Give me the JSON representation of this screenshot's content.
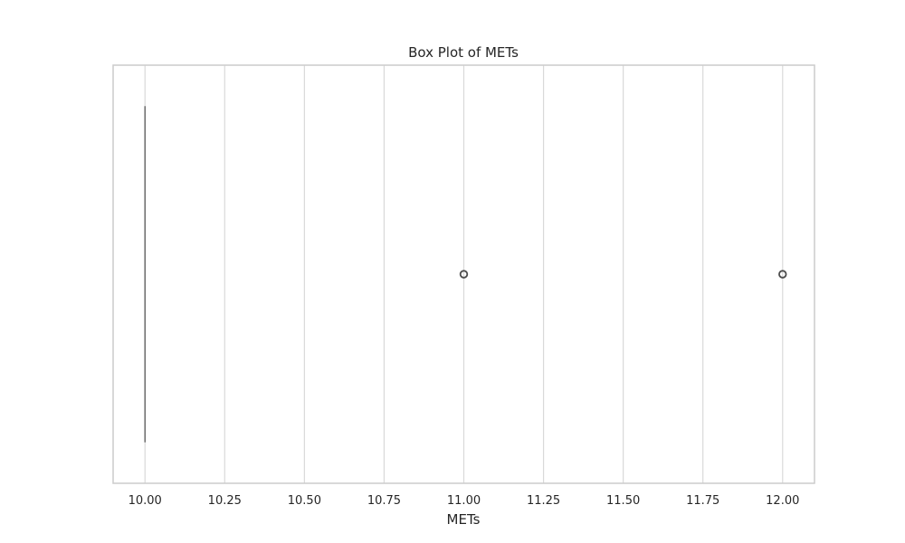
{
  "chart_data": {
    "type": "box",
    "title": "Box Plot of METs",
    "xlabel": "METs",
    "ylabel": "",
    "xlim": [
      9.9,
      12.1
    ],
    "xticks": [
      10.0,
      10.25,
      10.5,
      10.75,
      11.0,
      11.25,
      11.5,
      11.75,
      12.0
    ],
    "xtick_labels": [
      "10.00",
      "10.25",
      "10.50",
      "10.75",
      "11.00",
      "11.25",
      "11.50",
      "11.75",
      "12.00"
    ],
    "grid": true,
    "box": {
      "min": 10.0,
      "q1": 10.0,
      "median": 10.0,
      "q3": 10.0,
      "max": 10.0,
      "outliers": [
        11.0,
        12.0
      ]
    },
    "colors": {
      "box_line": "#6e6e6e",
      "outlier_edge": "#4d4d4d",
      "grid": "#d9d9d9",
      "frame": "#cccccc"
    }
  }
}
